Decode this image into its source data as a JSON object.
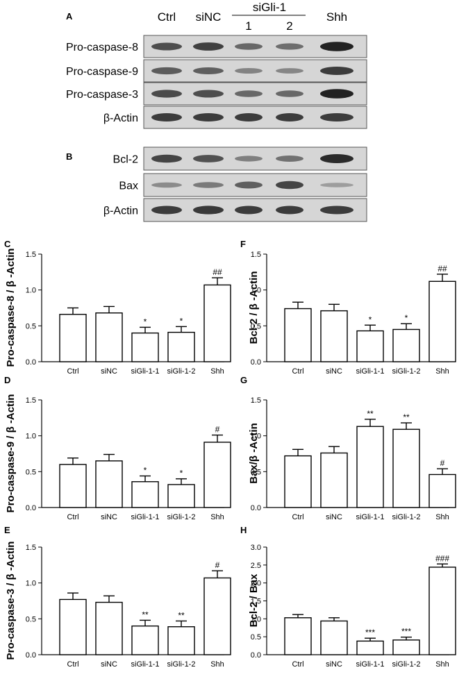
{
  "blots": [
    {
      "panel": "A",
      "header": {
        "lanes": [
          "Ctrl",
          "siNC",
          "",
          "",
          "Shh"
        ],
        "group_label": "siGli-1",
        "group_sub": [
          "1",
          "2"
        ]
      },
      "rows": [
        {
          "label": "Pro-caspase-8",
          "intensity": [
            0.7,
            0.78,
            0.55,
            0.52,
            0.95
          ]
        },
        {
          "label": "Pro-caspase-9",
          "intensity": [
            0.62,
            0.6,
            0.4,
            0.38,
            0.8
          ]
        },
        {
          "label": "Pro-caspase-3",
          "intensity": [
            0.72,
            0.7,
            0.55,
            0.55,
            0.95
          ]
        },
        {
          "label": "β-Actin",
          "intensity": [
            0.8,
            0.8,
            0.8,
            0.8,
            0.8
          ]
        }
      ]
    },
    {
      "panel": "B",
      "rows": [
        {
          "label": "Bcl-2",
          "intensity": [
            0.75,
            0.68,
            0.42,
            0.5,
            0.9
          ]
        },
        {
          "label": "Bax",
          "intensity": [
            0.35,
            0.45,
            0.6,
            0.75,
            0.25
          ]
        },
        {
          "label": "β-Actin",
          "intensity": [
            0.8,
            0.82,
            0.8,
            0.8,
            0.8
          ]
        }
      ]
    }
  ],
  "chart_data": [
    {
      "panel": "C",
      "type": "bar",
      "ylabel": "Pro-caspase-8 / β -Actin",
      "categories": [
        "Ctrl",
        "siNC",
        "siGli-1-1",
        "siGli-1-2",
        "Shh"
      ],
      "values": [
        0.66,
        0.68,
        0.4,
        0.41,
        1.07
      ],
      "errors": [
        0.09,
        0.09,
        0.08,
        0.08,
        0.1
      ],
      "annotations": [
        "",
        "",
        "*",
        "*",
        "##"
      ],
      "ylim": [
        0,
        1.5
      ],
      "yticks": [
        "0.0",
        "0.5",
        "1.0",
        "1.5"
      ]
    },
    {
      "panel": "D",
      "type": "bar",
      "ylabel": "Pro-caspase-9 / β -Actin",
      "categories": [
        "Ctrl",
        "siNC",
        "siGli-1-1",
        "siGli-1-2",
        "Shh"
      ],
      "values": [
        0.6,
        0.65,
        0.36,
        0.32,
        0.91
      ],
      "errors": [
        0.09,
        0.09,
        0.08,
        0.08,
        0.1
      ],
      "annotations": [
        "",
        "",
        "*",
        "*",
        "#"
      ],
      "ylim": [
        0,
        1.5
      ],
      "yticks": [
        "0.0",
        "0.5",
        "1.0",
        "1.5"
      ]
    },
    {
      "panel": "E",
      "type": "bar",
      "ylabel": "Pro-caspase-3 / β -Actin",
      "categories": [
        "Ctrl",
        "siNC",
        "siGli-1-1",
        "siGli-1-2",
        "Shh"
      ],
      "values": [
        0.77,
        0.73,
        0.4,
        0.39,
        1.07
      ],
      "errors": [
        0.09,
        0.09,
        0.08,
        0.08,
        0.1
      ],
      "annotations": [
        "",
        "",
        "**",
        "**",
        "#"
      ],
      "ylim": [
        0,
        1.5
      ],
      "yticks": [
        "0.0",
        "0.5",
        "1.0",
        "1.5"
      ]
    },
    {
      "panel": "F",
      "type": "bar",
      "ylabel": "Bcl-2 / β -Actin",
      "categories": [
        "Ctrl",
        "siNC",
        "siGli-1-1",
        "siGli-1-2",
        "Shh"
      ],
      "values": [
        0.74,
        0.71,
        0.43,
        0.45,
        1.12
      ],
      "errors": [
        0.09,
        0.09,
        0.08,
        0.08,
        0.1
      ],
      "annotations": [
        "",
        "",
        "*",
        "*",
        "##"
      ],
      "ylim": [
        0,
        1.5
      ],
      "yticks": [
        "0.0",
        "0.5",
        "1.0",
        "1.5"
      ]
    },
    {
      "panel": "G",
      "type": "bar",
      "ylabel": "Bax/β -Actin",
      "categories": [
        "Ctrl",
        "siNC",
        "siGli-1-1",
        "siGli-1-2",
        "Shh"
      ],
      "values": [
        0.72,
        0.76,
        1.13,
        1.09,
        0.46
      ],
      "errors": [
        0.09,
        0.09,
        0.1,
        0.09,
        0.08
      ],
      "annotations": [
        "",
        "",
        "**",
        "**",
        "#"
      ],
      "ylim": [
        0,
        1.5
      ],
      "yticks": [
        "0.0",
        "0.5",
        "1.0",
        "1.5"
      ]
    },
    {
      "panel": "H",
      "type": "bar",
      "ylabel": "Bcl-2 / Bax",
      "categories": [
        "Ctrl",
        "siNC",
        "siGli-1-1",
        "siGli-1-2",
        "Shh"
      ],
      "values": [
        1.03,
        0.94,
        0.38,
        0.41,
        2.44
      ],
      "errors": [
        0.09,
        0.09,
        0.08,
        0.08,
        0.09
      ],
      "annotations": [
        "",
        "",
        "***",
        "***",
        "###"
      ],
      "ylim": [
        0,
        3.0
      ],
      "yticks": [
        "0.0",
        "0.5",
        "1.0",
        "1.5",
        "2.0",
        "2.5",
        "3.0"
      ]
    }
  ]
}
